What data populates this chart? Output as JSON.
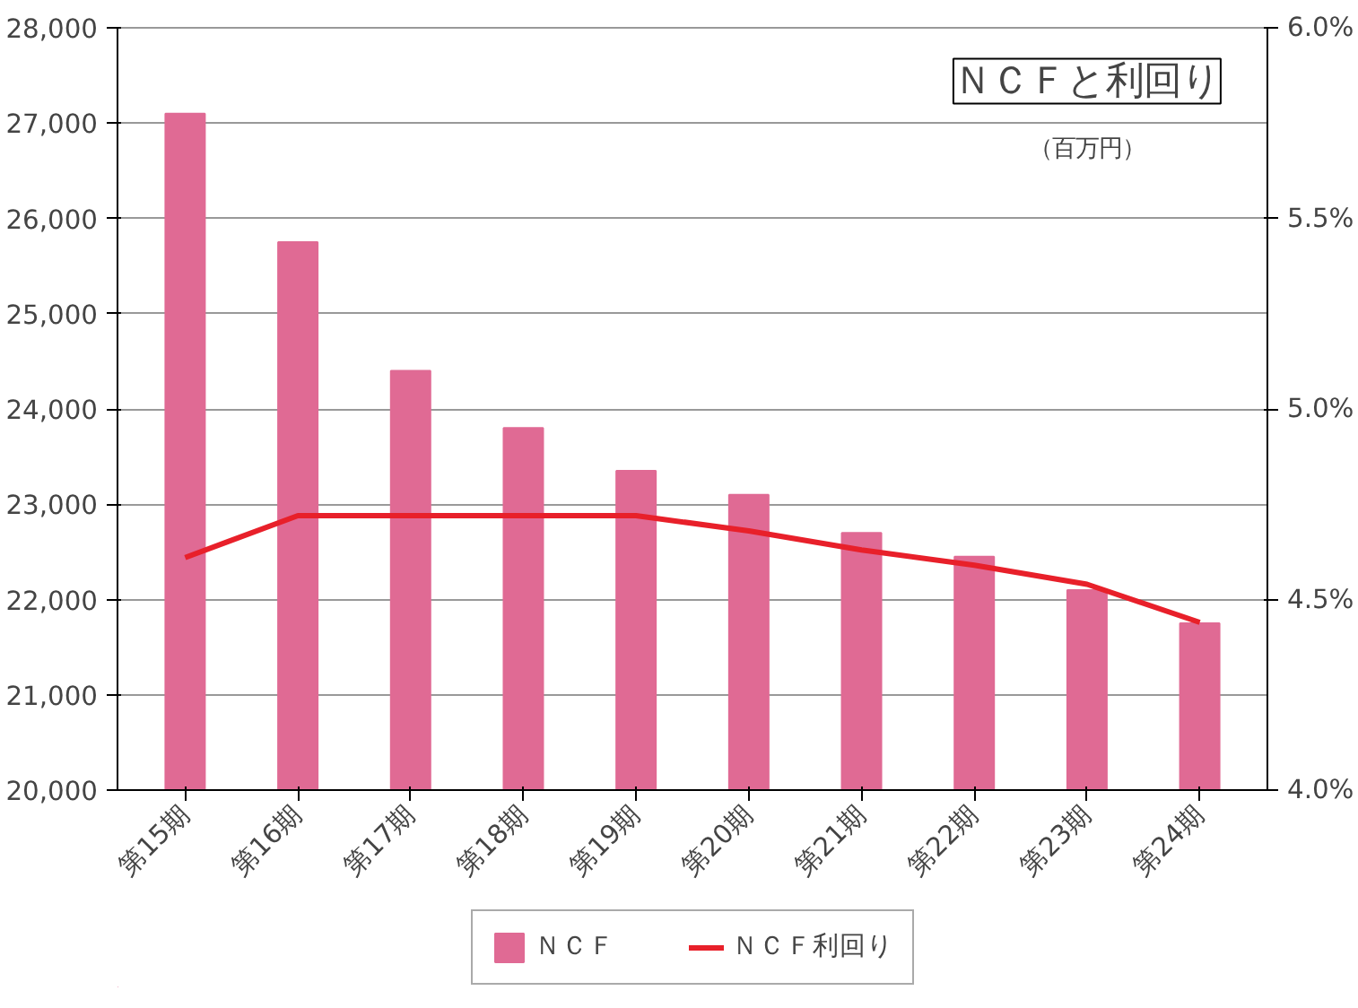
{
  "chart_data": {
    "type": "bar",
    "title": "ＮＣＦと利回り",
    "subtitle": "（百万円）",
    "categories": [
      "第15期",
      "第16期",
      "第17期",
      "第18期",
      "第19期",
      "第20期",
      "第21期",
      "第22期",
      "第23期",
      "第24期"
    ],
    "series": [
      {
        "name": "ＮＣＦ",
        "color": "#e06a94",
        "values": [
          27100,
          25750,
          24400,
          23800,
          23350,
          23100,
          22700,
          22450,
          22100,
          21750
        ]
      },
      {
        "name": "ＮＣＦ利回り",
        "type": "line",
        "axis": "y2",
        "color": "#e8202a",
        "values": [
          4.61,
          4.72,
          4.72,
          4.72,
          4.72,
          4.68,
          4.63,
          4.59,
          4.54,
          4.44
        ]
      }
    ],
    "ylim": [
      20000,
      28000
    ],
    "yticks": [
      {
        "value": 20000,
        "label": "20,000"
      },
      {
        "value": 21000,
        "label": "21,000"
      },
      {
        "value": 22000,
        "label": "22,000"
      },
      {
        "value": 23000,
        "label": "23,000"
      },
      {
        "value": 24000,
        "label": "24,000"
      },
      {
        "value": 25000,
        "label": "25,000"
      },
      {
        "value": 26000,
        "label": "26,000"
      },
      {
        "value": 27000,
        "label": "27,000"
      },
      {
        "value": 28000,
        "label": "28,000"
      }
    ],
    "y2lim": [
      4.0,
      6.0
    ],
    "y2ticks": [
      {
        "value": 4.0,
        "label": "4.0%"
      },
      {
        "value": 4.5,
        "label": "4.5%"
      },
      {
        "value": 5.0,
        "label": "5.0%"
      },
      {
        "value": 5.5,
        "label": "5.5%"
      },
      {
        "value": 6.0,
        "label": "6.0%"
      }
    ],
    "grid": "y",
    "legend": "bottom",
    "marker": "none",
    "line_style": "solid"
  }
}
